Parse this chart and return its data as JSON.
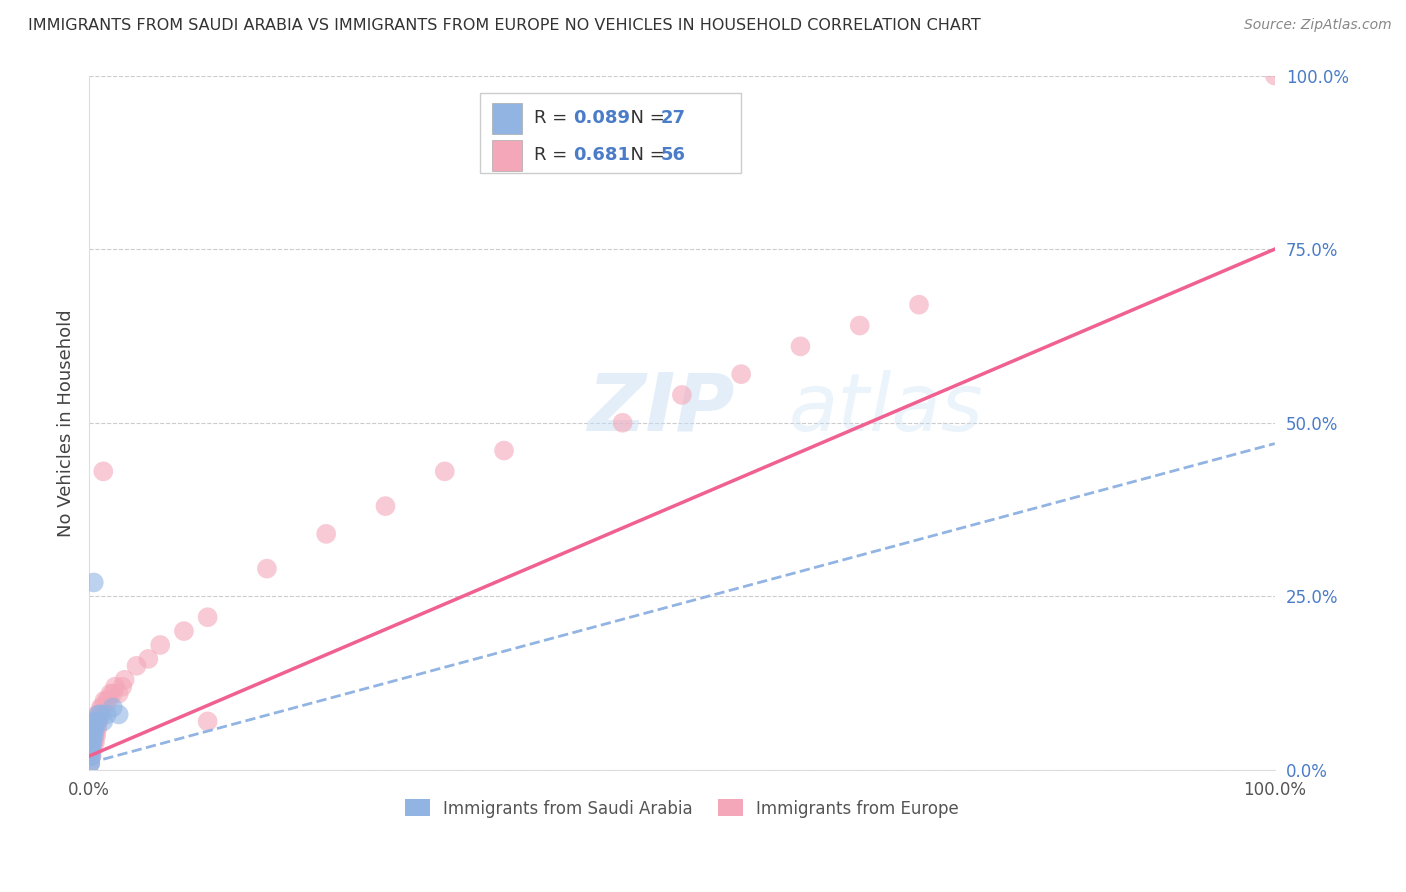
{
  "title": "IMMIGRANTS FROM SAUDI ARABIA VS IMMIGRANTS FROM EUROPE NO VEHICLES IN HOUSEHOLD CORRELATION CHART",
  "source": "Source: ZipAtlas.com",
  "ylabel": "No Vehicles in Household",
  "xlim": [
    0,
    1
  ],
  "ylim": [
    0,
    1
  ],
  "ytick_positions": [
    0.0,
    0.25,
    0.5,
    0.75,
    1.0
  ],
  "ytick_labels": [
    "0.0%",
    "25.0%",
    "50.0%",
    "75.0%",
    "100.0%"
  ],
  "xtick_positions": [
    0.0,
    1.0
  ],
  "xtick_labels": [
    "0.0%",
    "100.0%"
  ],
  "color_saudi": "#92b4e3",
  "color_europe": "#f4a7b9",
  "line_color_saudi": "#92b4e3",
  "line_color_europe": "#f06090",
  "watermark_zip": "ZIP",
  "watermark_atlas": "atlas",
  "legend_R1": "0.089",
  "legend_N1": "27",
  "legend_R2": "0.681",
  "legend_N2": "56",
  "europe_label": "Immigrants from Europe",
  "saudi_label": "Immigrants from Saudi Arabia",
  "europe_line_end_y": 0.75,
  "saudi_line_end_y": 0.47,
  "saudi_x": [
    0.001,
    0.001,
    0.001,
    0.001,
    0.001,
    0.001,
    0.002,
    0.002,
    0.002,
    0.002,
    0.002,
    0.003,
    0.003,
    0.003,
    0.004,
    0.004,
    0.004,
    0.005,
    0.005,
    0.006,
    0.007,
    0.008,
    0.01,
    0.012,
    0.015,
    0.02,
    0.025
  ],
  "saudi_y": [
    0.01,
    0.01,
    0.02,
    0.02,
    0.03,
    0.03,
    0.02,
    0.03,
    0.04,
    0.04,
    0.05,
    0.04,
    0.05,
    0.06,
    0.05,
    0.06,
    0.27,
    0.06,
    0.07,
    0.07,
    0.07,
    0.08,
    0.08,
    0.07,
    0.08,
    0.09,
    0.08
  ],
  "europe_x": [
    0.001,
    0.001,
    0.001,
    0.001,
    0.002,
    0.002,
    0.002,
    0.002,
    0.003,
    0.003,
    0.003,
    0.004,
    0.004,
    0.004,
    0.005,
    0.005,
    0.005,
    0.006,
    0.006,
    0.007,
    0.007,
    0.007,
    0.008,
    0.008,
    0.009,
    0.01,
    0.01,
    0.011,
    0.012,
    0.013,
    0.015,
    0.016,
    0.018,
    0.02,
    0.022,
    0.025,
    0.028,
    0.03,
    0.04,
    0.05,
    0.06,
    0.08,
    0.1,
    0.15,
    0.2,
    0.25,
    0.3,
    0.35,
    0.45,
    0.5,
    0.55,
    0.6,
    0.65,
    0.7,
    0.1,
    1.0
  ],
  "europe_y": [
    0.01,
    0.02,
    0.03,
    0.04,
    0.02,
    0.03,
    0.04,
    0.05,
    0.03,
    0.04,
    0.05,
    0.04,
    0.05,
    0.06,
    0.04,
    0.05,
    0.07,
    0.05,
    0.06,
    0.06,
    0.07,
    0.08,
    0.07,
    0.08,
    0.08,
    0.08,
    0.09,
    0.09,
    0.43,
    0.1,
    0.1,
    0.1,
    0.11,
    0.11,
    0.12,
    0.11,
    0.12,
    0.13,
    0.15,
    0.16,
    0.18,
    0.2,
    0.22,
    0.29,
    0.34,
    0.38,
    0.43,
    0.46,
    0.5,
    0.54,
    0.57,
    0.61,
    0.64,
    0.67,
    0.07,
    1.0
  ]
}
